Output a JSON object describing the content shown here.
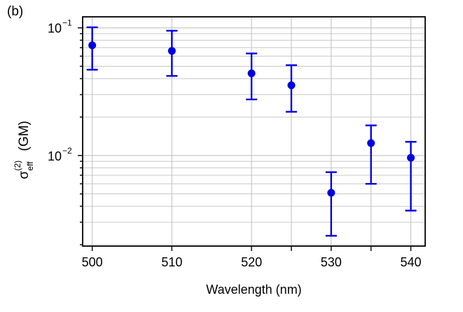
{
  "panel_label": "(b)",
  "chart_data": {
    "type": "scatter",
    "title": "",
    "xlabel": "Wavelength (nm)",
    "ylabel": {
      "base": "σ",
      "superscript": "(2)",
      "subscript": "eff",
      "unit": "(GM)"
    },
    "x_ticks": [
      500,
      510,
      520,
      525,
      530,
      535,
      540
    ],
    "x_tick_labels": [
      "500",
      "510",
      "520",
      "530",
      "540"
    ],
    "x_tick_label_values": [
      500,
      510,
      520,
      530,
      540
    ],
    "xlim": [
      498.8,
      541.8
    ],
    "yscale": "log",
    "ylim": [
      0.00195,
      0.122
    ],
    "y_tick_labels": [
      {
        "value": 0.1,
        "base": "10",
        "exp": "−1"
      },
      {
        "value": 0.01,
        "base": "10",
        "exp": "−2"
      }
    ],
    "grid": true,
    "marker_color": "#0000e6",
    "points": [
      {
        "x": 500,
        "y": 0.073,
        "ylow": 0.047,
        "yhigh": 0.101
      },
      {
        "x": 510,
        "y": 0.066,
        "ylow": 0.042,
        "yhigh": 0.095
      },
      {
        "x": 520,
        "y": 0.044,
        "ylow": 0.0275,
        "yhigh": 0.063
      },
      {
        "x": 525,
        "y": 0.0355,
        "ylow": 0.022,
        "yhigh": 0.051
      },
      {
        "x": 530,
        "y": 0.0051,
        "ylow": 0.00235,
        "yhigh": 0.0074
      },
      {
        "x": 535,
        "y": 0.0125,
        "ylow": 0.006,
        "yhigh": 0.0172
      },
      {
        "x": 540,
        "y": 0.0096,
        "ylow": 0.0037,
        "yhigh": 0.0128
      }
    ]
  }
}
